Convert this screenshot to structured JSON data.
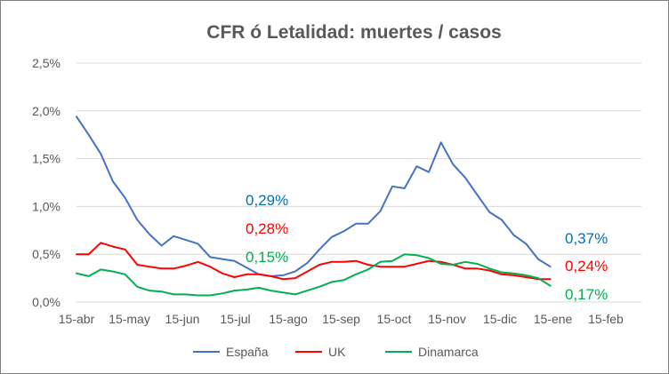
{
  "chart_data": {
    "type": "line",
    "title": "CFR ó Letalidad: muertes / casos",
    "xlabel": "",
    "ylabel": "",
    "ylim": [
      0,
      2.5
    ],
    "y_ticks": [
      {
        "value": 0.0,
        "label": "0,0%"
      },
      {
        "value": 0.5,
        "label": "0,5%"
      },
      {
        "value": 1.0,
        "label": "1,0%"
      },
      {
        "value": 1.5,
        "label": "1,5%"
      },
      {
        "value": 2.0,
        "label": "2,0%"
      },
      {
        "value": 2.5,
        "label": "2,5%"
      }
    ],
    "x_ticks": [
      "15-abr",
      "15-may",
      "15-jun",
      "15-jul",
      "15-ago",
      "15-sep",
      "15-oct",
      "15-nov",
      "15-dic",
      "15-ene",
      "15-feb"
    ],
    "grid": "horizontal",
    "legend": "bottom",
    "x": [
      "15-abr",
      "22-abr",
      "29-abr",
      "6-may",
      "13-may",
      "20-may",
      "27-may",
      "3-jun",
      "10-jun",
      "17-jun",
      "24-jun",
      "1-jul",
      "8-jul",
      "15-jul",
      "22-jul",
      "29-jul",
      "5-ago",
      "12-ago",
      "19-ago",
      "26-ago",
      "2-sep",
      "9-sep",
      "16-sep",
      "23-sep",
      "30-sep",
      "7-oct",
      "14-oct",
      "21-oct",
      "28-oct",
      "4-nov",
      "11-nov",
      "18-nov",
      "25-nov",
      "2-dic",
      "9-dic",
      "16-dic",
      "23-dic",
      "30-dic",
      "6-ene",
      "13-ene"
    ],
    "series": [
      {
        "name": "España",
        "color": "#4472c4",
        "values": [
          1.94,
          1.75,
          1.55,
          1.26,
          1.09,
          0.86,
          0.71,
          0.59,
          0.69,
          0.65,
          0.61,
          0.47,
          0.45,
          0.43,
          0.36,
          0.29,
          0.27,
          0.28,
          0.32,
          0.41,
          0.55,
          0.68,
          0.74,
          0.82,
          0.82,
          0.95,
          1.21,
          1.19,
          1.42,
          1.36,
          1.67,
          1.44,
          1.3,
          1.12,
          0.94,
          0.86,
          0.7,
          0.61,
          0.45,
          0.37
        ]
      },
      {
        "name": "UK",
        "color": "#ff0000",
        "values": [
          0.5,
          0.5,
          0.62,
          0.58,
          0.55,
          0.39,
          0.37,
          0.35,
          0.35,
          0.38,
          0.42,
          0.37,
          0.3,
          0.26,
          0.29,
          0.29,
          0.27,
          0.24,
          0.25,
          0.32,
          0.39,
          0.42,
          0.42,
          0.43,
          0.39,
          0.37,
          0.37,
          0.37,
          0.4,
          0.43,
          0.42,
          0.39,
          0.35,
          0.35,
          0.33,
          0.29,
          0.28,
          0.26,
          0.24,
          0.24
        ]
      },
      {
        "name": "Dinamarca",
        "color": "#00b050",
        "values": [
          0.3,
          0.27,
          0.34,
          0.32,
          0.29,
          0.16,
          0.12,
          0.11,
          0.08,
          0.08,
          0.07,
          0.07,
          0.09,
          0.12,
          0.13,
          0.15,
          0.12,
          0.1,
          0.08,
          0.12,
          0.16,
          0.21,
          0.23,
          0.29,
          0.34,
          0.42,
          0.43,
          0.5,
          0.49,
          0.46,
          0.4,
          0.39,
          0.42,
          0.4,
          0.35,
          0.31,
          0.3,
          0.28,
          0.25,
          0.17
        ]
      }
    ],
    "annotations": [
      {
        "text": "0,29%",
        "color": "#0070c0"
      },
      {
        "text": "0,28%",
        "color": "#ff0000"
      },
      {
        "text": "0,15%",
        "color": "#00b050"
      },
      {
        "text": "0,37%",
        "color": "#0070c0"
      },
      {
        "text": "0,24%",
        "color": "#ff0000"
      },
      {
        "text": "0,17%",
        "color": "#00b050"
      }
    ]
  }
}
